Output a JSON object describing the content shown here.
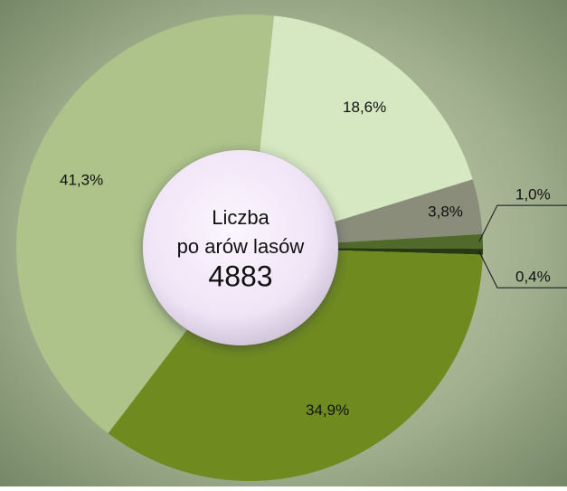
{
  "chart_data": {
    "type": "donut",
    "center_lines": [
      "Liczba",
      "po  arów lasów",
      "4883"
    ],
    "values": [
      18.6,
      3.8,
      1.0,
      0.4,
      34.9,
      41.3
    ],
    "value_labels": [
      "18,6%",
      "3,8%",
      "1,0%",
      "0,4%",
      "34,9%",
      "41,3%"
    ],
    "colors": [
      "#d6e8c2",
      "#8b8d7b",
      "#4f6a2b",
      "#263a12",
      "#6f8b20",
      "#adc389"
    ]
  }
}
